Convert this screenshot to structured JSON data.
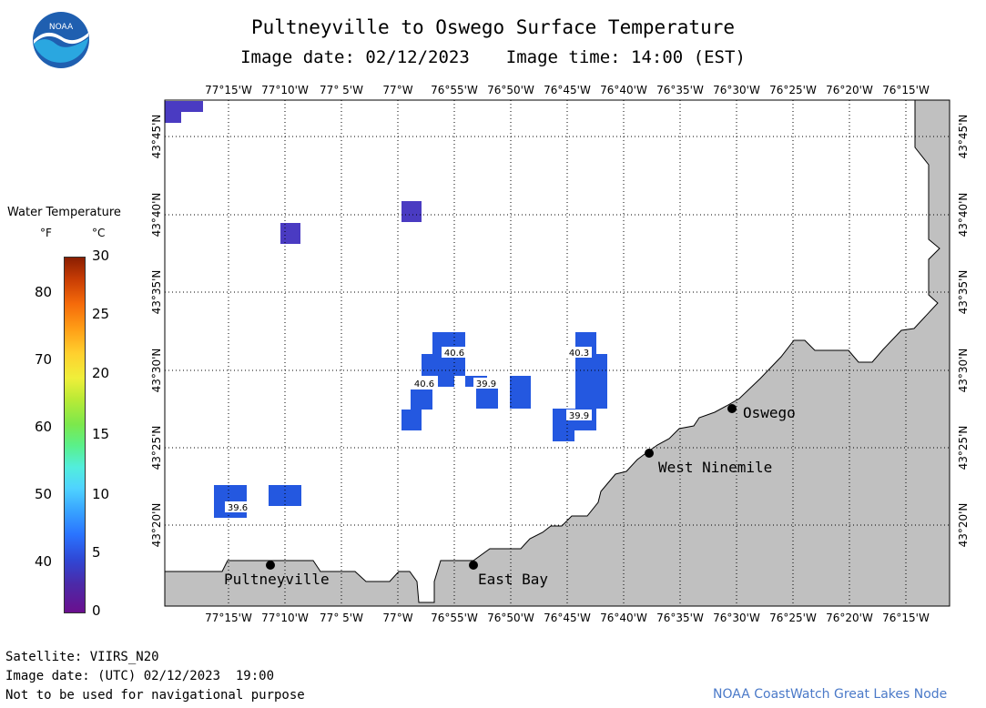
{
  "title": "Pultneyville to Oswego Surface Temperature",
  "image_date_label": "Image date: 02/12/2023",
  "image_time_label": "Image time: 14:00 (EST)",
  "legend": {
    "title": "Water Temperature",
    "unit_f": "°F",
    "unit_c": "°C",
    "ticks_f": [
      "80",
      "70",
      "60",
      "50",
      "40"
    ],
    "ticks_c": [
      "30",
      "25",
      "20",
      "15",
      "10",
      "5",
      "0"
    ]
  },
  "axes": {
    "lon_labels": [
      "77°15'W",
      "77°10'W",
      "77° 5'W",
      "77°W",
      "76°55'W",
      "76°50'W",
      "76°45'W",
      "76°40'W",
      "76°35'W",
      "76°30'W",
      "76°25'W",
      "76°20'W",
      "76°15'W"
    ],
    "lat_labels": [
      "43°45'N",
      "43°40'N",
      "43°35'N",
      "43°30'N",
      "43°25'N",
      "43°20'N"
    ]
  },
  "places": [
    {
      "name": "Pultneyville"
    },
    {
      "name": "East Bay"
    },
    {
      "name": "West Ninemile"
    },
    {
      "name": "Oswego"
    }
  ],
  "temperature_readings": [
    "40.6",
    "40.6",
    "39.9",
    "40.3",
    "39.9",
    "39.6"
  ],
  "colors": {
    "land": "#c0c0c0",
    "water_cold": "#2458e0",
    "water_coldest": "#4a3bc2",
    "grid": "#000000",
    "credit": "#4a79c8"
  },
  "footer": {
    "satellite": "Satellite: VIIRS_N20",
    "utc_date": "Image date: (UTC) 02/12/2023  19:00",
    "disclaimer": "Not to be used for navigational purpose",
    "credit": "NOAA CoastWatch Great Lakes Node"
  }
}
